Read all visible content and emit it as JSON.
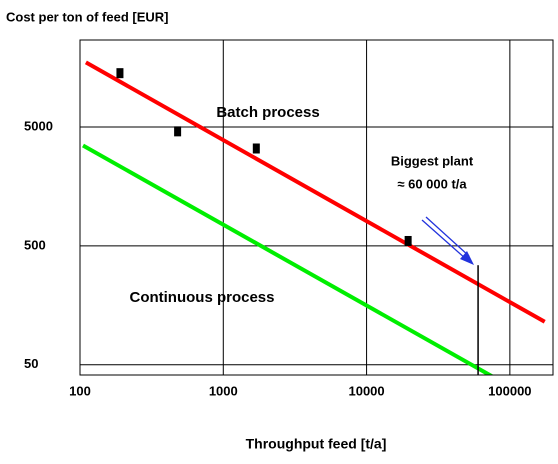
{
  "chart_data": {
    "type": "line",
    "title": "Cost per ton of feed  [EUR]",
    "x_label": "Throughput feed [t/a]",
    "log_x": true,
    "log_y": true,
    "grid": true,
    "xlim": [
      100,
      200000
    ],
    "ylim": [
      41,
      27000
    ],
    "xticks": [
      100,
      1000,
      10000,
      100000
    ],
    "yticks": [
      50,
      500,
      5000
    ],
    "series": [
      {
        "name": "Batch process",
        "color": "#ff0000",
        "x": [
          110,
          175000
        ],
        "values": [
          17500,
          115
        ]
      },
      {
        "name": "Continuous process",
        "color": "#00ee00",
        "x": [
          105,
          175000
        ],
        "values": [
          3500,
          22.5
        ]
      }
    ],
    "points": {
      "color": "#000000",
      "x": [
        190,
        480,
        1700,
        19500
      ],
      "values": [
        14200,
        4600,
        3300,
        550
      ]
    },
    "annotation": {
      "lines": [
        "Biggest plant",
        "≈ 60 000 t/a"
      ],
      "x": 60000,
      "y": 344
    }
  }
}
